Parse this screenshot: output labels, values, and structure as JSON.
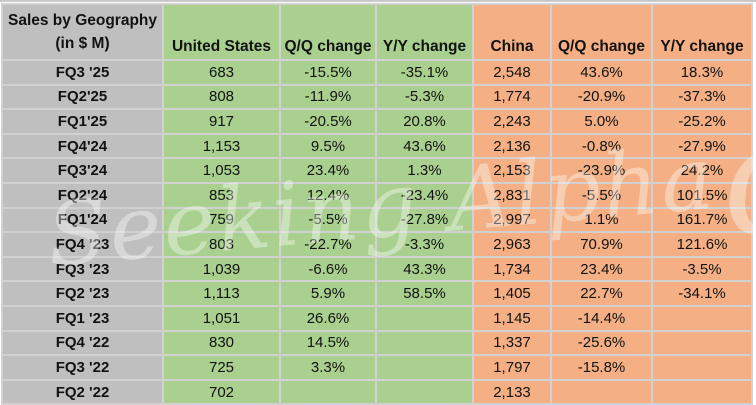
{
  "title": {
    "line1": "Sales by Geography",
    "line2": "(in $ M)"
  },
  "watermark": {
    "text": "Seeking Alpha",
    "alpha_glyph": "α"
  },
  "colors": {
    "us_fill": "#a9d08e",
    "china_fill": "#f4b084",
    "label_fill": "#bfbfbf",
    "gridline": "#d2d0d0",
    "text": "#121212"
  },
  "chart_data": {
    "type": "table",
    "title": "Sales by Geography (in $ M)",
    "columns": [
      "United States",
      "Q/Q change",
      "Y/Y change",
      "China",
      "Q/Q change",
      "Y/Y change"
    ],
    "rows": [
      {
        "quarter": "FQ3 '25",
        "cells": [
          "683",
          "-15.5%",
          "-35.1%",
          "2,548",
          "43.6%",
          "18.3%"
        ]
      },
      {
        "quarter": "FQ2'25",
        "cells": [
          "808",
          "-11.9%",
          "-5.3%",
          "1,774",
          "-20.9%",
          "-37.3%"
        ]
      },
      {
        "quarter": "FQ1'25",
        "cells": [
          "917",
          "-20.5%",
          "20.8%",
          "2,243",
          "5.0%",
          "-25.2%"
        ]
      },
      {
        "quarter": "FQ4'24",
        "cells": [
          "1,153",
          "9.5%",
          "43.6%",
          "2,136",
          "-0.8%",
          "-27.9%"
        ]
      },
      {
        "quarter": "FQ3'24",
        "cells": [
          "1,053",
          "23.4%",
          "1.3%",
          "2,153",
          "-23.9%",
          "24.2%"
        ]
      },
      {
        "quarter": "FQ2'24",
        "cells": [
          "853",
          "12.4%",
          "-23.4%",
          "2,831",
          "-5.5%",
          "101.5%"
        ]
      },
      {
        "quarter": "FQ1'24",
        "cells": [
          "759",
          "-5.5%",
          "-27.8%",
          "2,997",
          "1.1%",
          "161.7%"
        ]
      },
      {
        "quarter": "FQ4 '23",
        "cells": [
          "803",
          "-22.7%",
          "-3.3%",
          "2,963",
          "70.9%",
          "121.6%"
        ]
      },
      {
        "quarter": "FQ3 '23",
        "cells": [
          "1,039",
          "-6.6%",
          "43.3%",
          "1,734",
          "23.4%",
          "-3.5%"
        ]
      },
      {
        "quarter": "FQ2 '23",
        "cells": [
          "1,113",
          "5.9%",
          "58.5%",
          "1,405",
          "22.7%",
          "-34.1%"
        ]
      },
      {
        "quarter": "FQ1 '23",
        "cells": [
          "1,051",
          "26.6%",
          "",
          "1,145",
          "-14.4%",
          ""
        ]
      },
      {
        "quarter": "FQ4 '22",
        "cells": [
          "830",
          "14.5%",
          "",
          "1,337",
          "-25.6%",
          ""
        ]
      },
      {
        "quarter": "FQ3 '22",
        "cells": [
          "725",
          "3.3%",
          "",
          "1,797",
          "-15.8%",
          ""
        ]
      },
      {
        "quarter": "FQ2 '22",
        "cells": [
          "702",
          "",
          "",
          "2,133",
          "",
          ""
        ]
      }
    ]
  }
}
